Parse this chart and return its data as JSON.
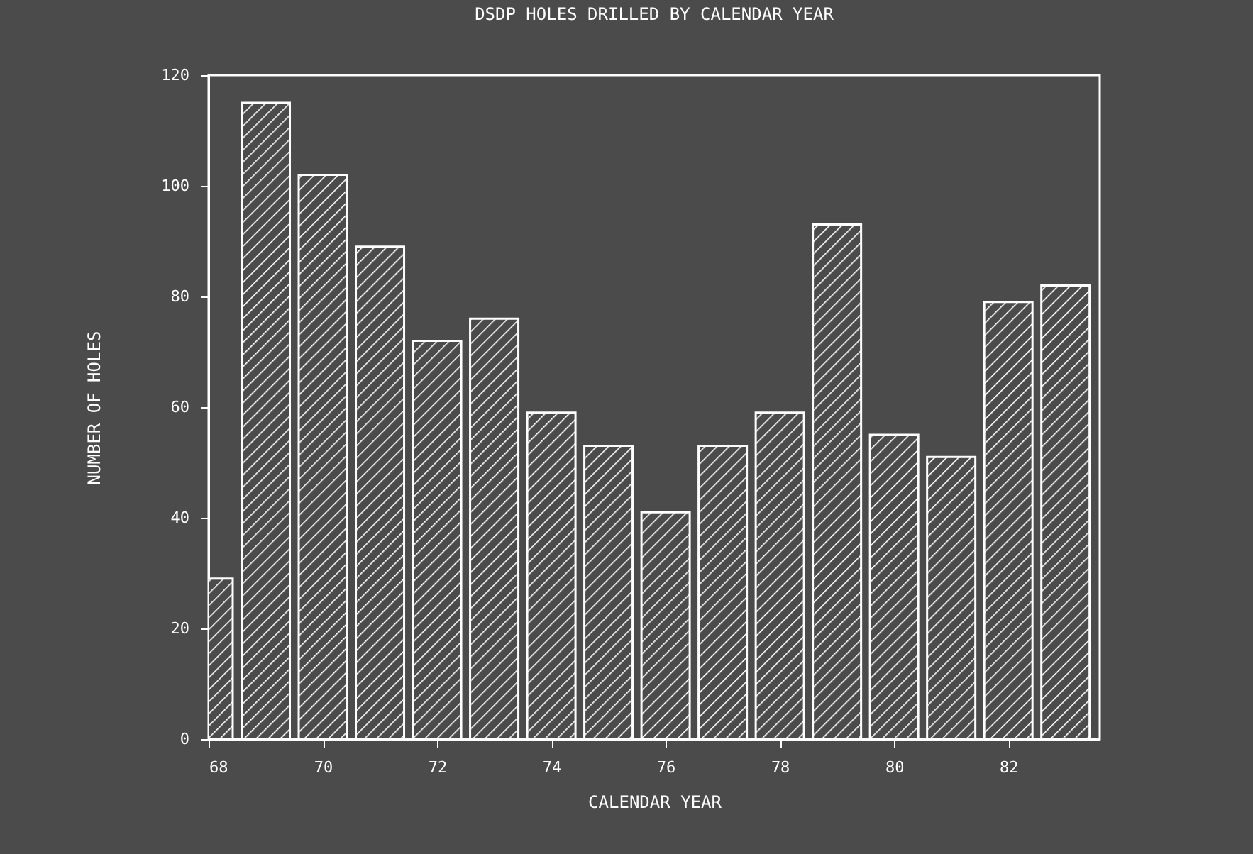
{
  "chart_data": {
    "type": "bar",
    "title": "DSDP HOLES DRILLED BY CALENDAR YEAR",
    "xlabel": "CALENDAR YEAR",
    "ylabel": "NUMBER OF HOLES",
    "x": [
      68,
      69,
      70,
      71,
      72,
      73,
      74,
      75,
      76,
      77,
      78,
      79,
      80,
      81,
      82,
      83
    ],
    "values": [
      29,
      115,
      102,
      89,
      72,
      76,
      59,
      53,
      41,
      53,
      59,
      93,
      55,
      51,
      79,
      82
    ],
    "color": "#ffffff",
    "xlim": [
      68,
      83.6
    ],
    "xticks": [
      68,
      70,
      72,
      74,
      76,
      78,
      80,
      82
    ],
    "ylim": [
      0,
      120
    ],
    "yticks": [
      0,
      20,
      40,
      60,
      80,
      100,
      120
    ],
    "grid": false
  }
}
